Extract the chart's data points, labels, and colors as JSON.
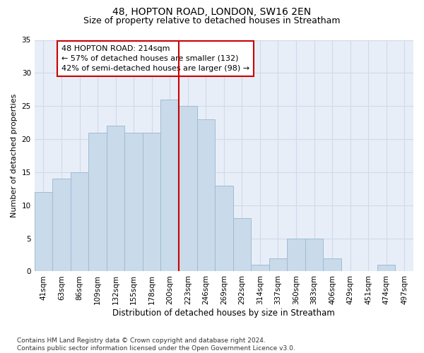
{
  "title": "48, HOPTON ROAD, LONDON, SW16 2EN",
  "subtitle": "Size of property relative to detached houses in Streatham",
  "xlabel": "Distribution of detached houses by size in Streatham",
  "ylabel": "Number of detached properties",
  "categories": [
    "41sqm",
    "63sqm",
    "86sqm",
    "109sqm",
    "132sqm",
    "155sqm",
    "178sqm",
    "200sqm",
    "223sqm",
    "246sqm",
    "269sqm",
    "292sqm",
    "314sqm",
    "337sqm",
    "360sqm",
    "383sqm",
    "406sqm",
    "429sqm",
    "451sqm",
    "474sqm",
    "497sqm"
  ],
  "values": [
    12,
    14,
    15,
    21,
    22,
    21,
    21,
    26,
    25,
    23,
    13,
    8,
    1,
    2,
    5,
    5,
    2,
    0,
    0,
    1,
    0
  ],
  "bar_color": "#c9daea",
  "bar_edge_color": "#a0bcd4",
  "highlight_line_color": "#cc0000",
  "annotation_text": "48 HOPTON ROAD: 214sqm\n← 57% of detached houses are smaller (132)\n42% of semi-detached houses are larger (98) →",
  "annotation_box_color": "#ffffff",
  "annotation_box_edge_color": "#cc0000",
  "ylim": [
    0,
    35
  ],
  "yticks": [
    0,
    5,
    10,
    15,
    20,
    25,
    30,
    35
  ],
  "grid_color": "#d0daea",
  "background_color": "#e8eef8",
  "footnote": "Contains HM Land Registry data © Crown copyright and database right 2024.\nContains public sector information licensed under the Open Government Licence v3.0.",
  "title_fontsize": 10,
  "subtitle_fontsize": 9,
  "xlabel_fontsize": 8.5,
  "ylabel_fontsize": 8,
  "tick_fontsize": 7.5,
  "annot_fontsize": 8,
  "footnote_fontsize": 6.5
}
